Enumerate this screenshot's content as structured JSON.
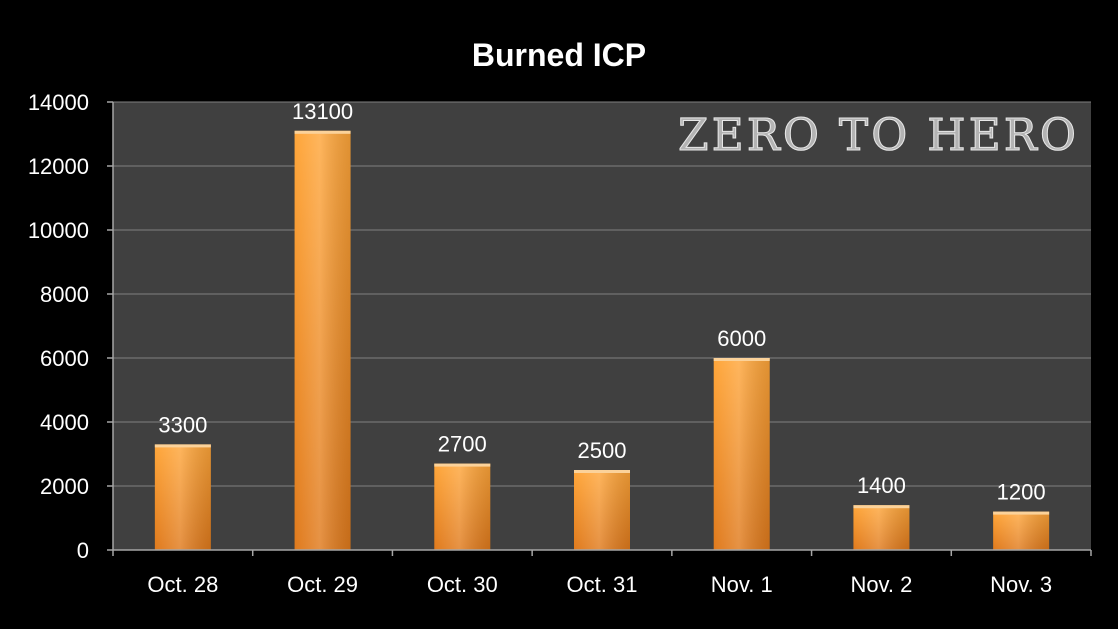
{
  "chart_data": {
    "type": "bar",
    "title": "Burned ICP",
    "watermark": "ZERO TO HERO",
    "categories": [
      "Oct. 28",
      "Oct. 29",
      "Oct. 30",
      "Oct. 31",
      "Nov. 1",
      "Nov. 2",
      "Nov. 3"
    ],
    "values": [
      3300,
      13100,
      2700,
      2500,
      6000,
      1400,
      1200
    ],
    "data_labels": [
      "3300",
      "13100",
      "2700",
      "2500",
      "6000",
      "1400",
      "1200"
    ],
    "ylim": [
      0,
      14000
    ],
    "yticks": [
      0,
      2000,
      4000,
      6000,
      8000,
      10000,
      12000,
      14000
    ],
    "ytick_labels": [
      "0",
      "2000",
      "4000",
      "6000",
      "8000",
      "10000",
      "12000",
      "14000"
    ],
    "xlabel": "",
    "ylabel": "",
    "grid": true,
    "legend": "none",
    "colors": {
      "page_background": "#000000",
      "plot_background": "#404040",
      "gridline": "#7f7f7f",
      "axis": "#a6a6a6",
      "text": "#ffffff",
      "bar_light": "#ffa63a",
      "bar_dark": "#e07a1c",
      "bar_edge": "#fbd29a",
      "watermark_fill": "#c8c8c8",
      "watermark_stroke": "#e8e8e8"
    }
  }
}
